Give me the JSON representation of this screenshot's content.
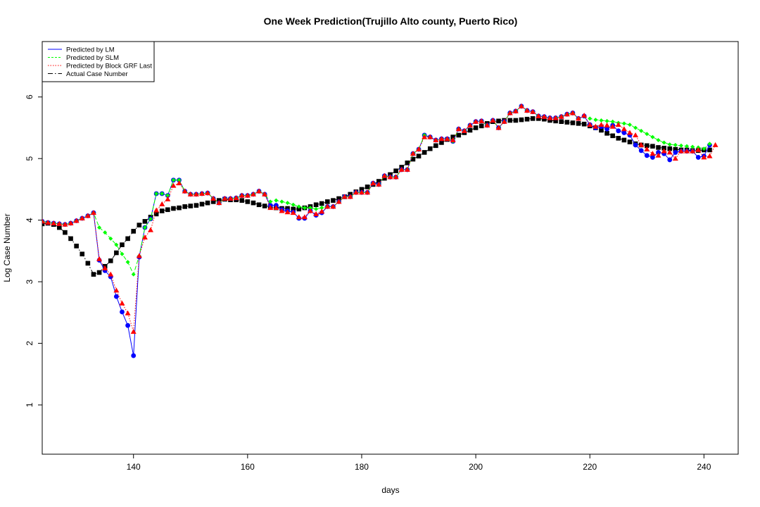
{
  "chart_data": {
    "type": "line",
    "title": "One Week Prediction(Trujillo Alto county, Puerto Rico)",
    "xlabel": "days",
    "ylabel": "Log Case Number",
    "xlim": [
      124,
      246
    ],
    "ylim": [
      0.2,
      6.9
    ],
    "xticks": [
      140,
      160,
      180,
      200,
      220,
      240
    ],
    "yticks": [
      1,
      2,
      3,
      4,
      5,
      6
    ],
    "grid": false,
    "legend_position": "top-left",
    "x_start": 124,
    "series": [
      {
        "name": "Predicted by LM",
        "color": "#0000ff",
        "line": "solid",
        "marker": "circle",
        "values": [
          3.98,
          3.96,
          3.95,
          3.94,
          3.93,
          3.95,
          3.99,
          4.03,
          4.07,
          4.12,
          3.35,
          3.18,
          3.08,
          2.76,
          2.51,
          2.29,
          1.8,
          3.4,
          3.88,
          4.02,
          4.43,
          4.43,
          4.4,
          4.65,
          4.65,
          4.47,
          4.42,
          4.42,
          4.43,
          4.44,
          4.35,
          4.28,
          4.35,
          4.35,
          4.36,
          4.4,
          4.4,
          4.42,
          4.47,
          4.42,
          4.24,
          4.24,
          4.17,
          4.15,
          4.13,
          4.03,
          4.03,
          4.15,
          4.08,
          4.12,
          4.22,
          4.22,
          4.3,
          4.38,
          4.38,
          4.45,
          4.45,
          4.45,
          4.6,
          4.58,
          4.72,
          4.7,
          4.7,
          4.82,
          4.82,
          5.08,
          5.15,
          5.38,
          5.35,
          5.3,
          5.32,
          5.32,
          5.28,
          5.48,
          5.45,
          5.54,
          5.6,
          5.61,
          5.54,
          5.62,
          5.5,
          5.6,
          5.74,
          5.77,
          5.85,
          5.78,
          5.76,
          5.69,
          5.68,
          5.66,
          5.66,
          5.68,
          5.72,
          5.74,
          5.65,
          5.69,
          5.55,
          5.5,
          5.52,
          5.48,
          5.54,
          5.45,
          5.42,
          5.38,
          5.22,
          5.13,
          5.05,
          5.02,
          5.1,
          5.08,
          4.98,
          5.1,
          5.12,
          5.12,
          5.12,
          5.02,
          5.04,
          5.22
        ]
      },
      {
        "name": "Predicted by SLM",
        "color": "#00ff00",
        "line": "dashed",
        "marker": "diamond",
        "values": [
          3.98,
          3.96,
          3.95,
          3.94,
          3.93,
          3.95,
          3.99,
          4.03,
          4.07,
          4.12,
          3.88,
          3.8,
          3.7,
          3.6,
          3.45,
          3.32,
          3.12,
          3.42,
          3.88,
          4.02,
          4.43,
          4.43,
          4.4,
          4.65,
          4.65,
          4.47,
          4.42,
          4.42,
          4.43,
          4.44,
          4.35,
          4.28,
          4.35,
          4.35,
          4.36,
          4.4,
          4.4,
          4.42,
          4.47,
          4.42,
          4.3,
          4.32,
          4.3,
          4.28,
          4.25,
          4.22,
          4.2,
          4.2,
          4.18,
          4.2,
          4.22,
          4.22,
          4.3,
          4.38,
          4.38,
          4.45,
          4.45,
          4.45,
          4.6,
          4.58,
          4.72,
          4.7,
          4.7,
          4.82,
          4.82,
          5.08,
          5.15,
          5.38,
          5.35,
          5.3,
          5.32,
          5.32,
          5.28,
          5.48,
          5.45,
          5.54,
          5.6,
          5.61,
          5.54,
          5.62,
          5.5,
          5.6,
          5.74,
          5.77,
          5.85,
          5.78,
          5.76,
          5.69,
          5.68,
          5.66,
          5.66,
          5.68,
          5.72,
          5.74,
          5.65,
          5.69,
          5.65,
          5.63,
          5.62,
          5.61,
          5.6,
          5.58,
          5.57,
          5.55,
          5.5,
          5.45,
          5.4,
          5.35,
          5.3,
          5.26,
          5.23,
          5.22,
          5.21,
          5.2,
          5.19,
          5.18,
          5.16,
          5.24
        ]
      },
      {
        "name": "Predicted by Block GRF Last",
        "color": "#ff0000",
        "line": "dotted",
        "marker": "triangle",
        "values": [
          3.98,
          3.96,
          3.95,
          3.94,
          3.93,
          3.95,
          3.99,
          4.03,
          4.07,
          4.12,
          3.37,
          3.22,
          3.12,
          2.86,
          2.65,
          2.49,
          2.19,
          3.42,
          3.72,
          3.84,
          4.16,
          4.26,
          4.34,
          4.56,
          4.6,
          4.47,
          4.42,
          4.42,
          4.43,
          4.44,
          4.35,
          4.28,
          4.35,
          4.35,
          4.36,
          4.4,
          4.4,
          4.42,
          4.47,
          4.42,
          4.2,
          4.2,
          4.15,
          4.13,
          4.12,
          4.05,
          4.05,
          4.15,
          4.1,
          4.14,
          4.22,
          4.22,
          4.3,
          4.38,
          4.38,
          4.45,
          4.45,
          4.45,
          4.6,
          4.58,
          4.72,
          4.7,
          4.7,
          4.82,
          4.82,
          5.08,
          5.15,
          5.35,
          5.35,
          5.3,
          5.32,
          5.32,
          5.3,
          5.48,
          5.45,
          5.54,
          5.6,
          5.61,
          5.54,
          5.62,
          5.5,
          5.6,
          5.74,
          5.77,
          5.85,
          5.78,
          5.76,
          5.69,
          5.68,
          5.66,
          5.66,
          5.68,
          5.72,
          5.74,
          5.65,
          5.7,
          5.55,
          5.52,
          5.55,
          5.54,
          5.52,
          5.55,
          5.48,
          5.42,
          5.38,
          5.22,
          5.15,
          5.08,
          5.05,
          5.12,
          5.1,
          5.0,
          5.12,
          5.12,
          5.12,
          5.14,
          5.02,
          5.04,
          5.22
        ]
      },
      {
        "name": "Actual Case Number",
        "color": "#000000",
        "line": "dashdot",
        "marker": "square",
        "values": [
          3.94,
          3.95,
          3.93,
          3.88,
          3.8,
          3.7,
          3.58,
          3.45,
          3.3,
          3.12,
          3.15,
          3.25,
          3.34,
          3.47,
          3.6,
          3.7,
          3.82,
          3.92,
          3.98,
          4.05,
          4.1,
          4.15,
          4.17,
          4.19,
          4.2,
          4.22,
          4.23,
          4.24,
          4.26,
          4.28,
          4.3,
          4.32,
          4.34,
          4.33,
          4.33,
          4.32,
          4.3,
          4.28,
          4.25,
          4.23,
          4.22,
          4.2,
          4.19,
          4.19,
          4.18,
          4.18,
          4.2,
          4.22,
          4.25,
          4.27,
          4.3,
          4.32,
          4.35,
          4.38,
          4.42,
          4.46,
          4.5,
          4.54,
          4.58,
          4.63,
          4.68,
          4.74,
          4.8,
          4.86,
          4.93,
          4.99,
          5.04,
          5.1,
          5.16,
          5.21,
          5.26,
          5.31,
          5.35,
          5.38,
          5.42,
          5.46,
          5.5,
          5.53,
          5.57,
          5.6,
          5.61,
          5.62,
          5.62,
          5.62,
          5.63,
          5.64,
          5.65,
          5.65,
          5.64,
          5.62,
          5.61,
          5.6,
          5.59,
          5.58,
          5.57,
          5.56,
          5.53,
          5.5,
          5.46,
          5.41,
          5.37,
          5.33,
          5.3,
          5.27,
          5.24,
          5.22,
          5.21,
          5.2,
          5.18,
          5.17,
          5.16,
          5.15,
          5.14,
          5.14,
          5.13,
          5.13,
          5.14,
          5.14
        ]
      }
    ]
  }
}
